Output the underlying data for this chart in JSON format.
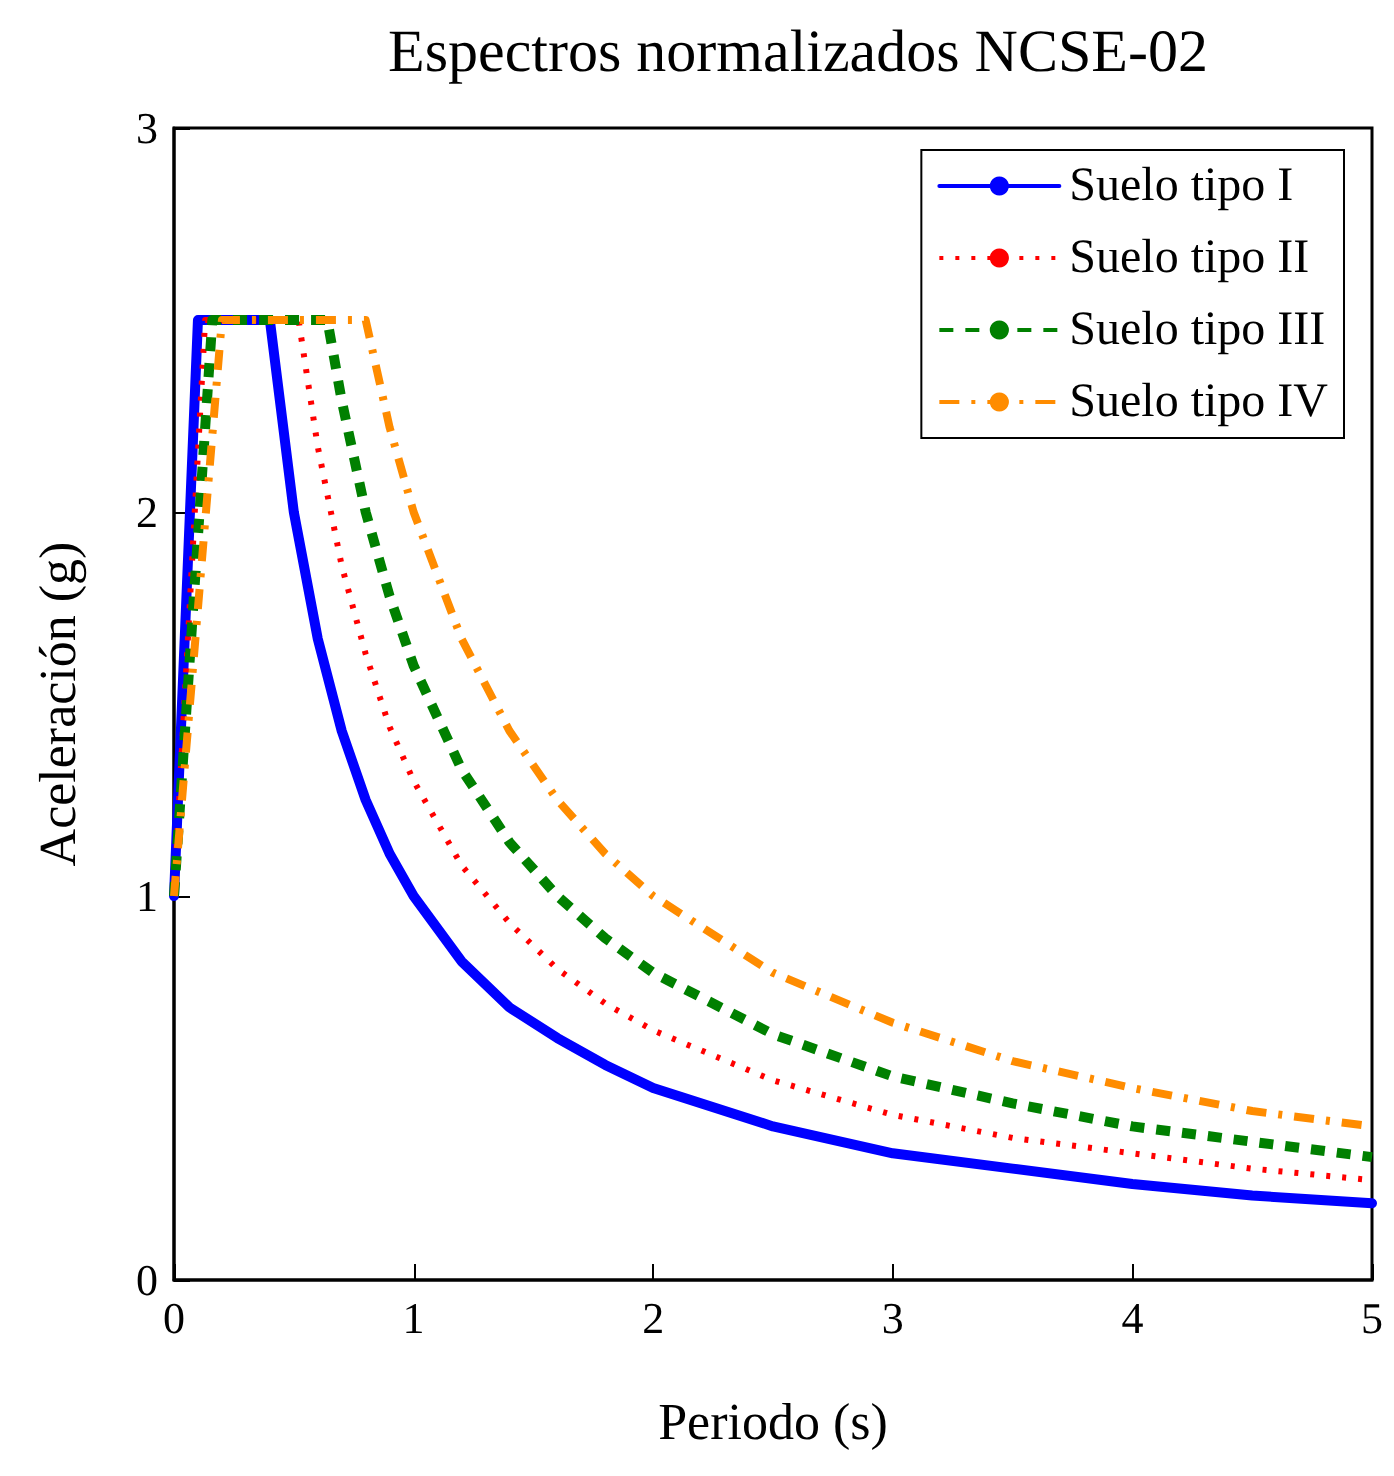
{
  "chart_data": {
    "type": "line",
    "title": "Espectros normalizados NCSE-02",
    "xlabel": "Periodo (s)",
    "ylabel": "Aceleración (g)",
    "xlim": [
      0,
      5
    ],
    "xticks": [
      0,
      1,
      2,
      3,
      4,
      5
    ],
    "ylim": [
      0,
      3
    ],
    "yticks": [
      0,
      1,
      2,
      3
    ],
    "grid": false,
    "legend": "top right",
    "marker": "none",
    "series": [
      {
        "name": "Suelo tipo I",
        "color": "#0000ff",
        "line_style": "solid",
        "x": [
          0,
          0.1,
          0.4,
          0.5,
          0.6,
          0.7,
          0.8,
          0.9,
          1,
          1.2,
          1.4,
          1.6,
          1.8,
          2,
          2.5,
          3,
          3.5,
          4,
          4.5,
          5
        ],
        "values": [
          1,
          2.5,
          2.5,
          2.0,
          1.67,
          1.43,
          1.25,
          1.11,
          1.0,
          0.83,
          0.71,
          0.63,
          0.56,
          0.5,
          0.4,
          0.33,
          0.29,
          0.25,
          0.22,
          0.2
        ]
      },
      {
        "name": "Suelo tipo II",
        "color": "#ff0000",
        "line_style": "dotted",
        "x": [
          0,
          0.13,
          0.52,
          0.6,
          0.7,
          0.8,
          0.9,
          1,
          1.2,
          1.4,
          1.6,
          1.8,
          2,
          2.5,
          3,
          3.5,
          4,
          4.5,
          5
        ],
        "values": [
          1,
          2.5,
          2.5,
          2.17,
          1.86,
          1.63,
          1.44,
          1.3,
          1.08,
          0.93,
          0.81,
          0.72,
          0.65,
          0.52,
          0.43,
          0.37,
          0.33,
          0.29,
          0.26
        ]
      },
      {
        "name": "Suelo tipo III",
        "color": "#008000",
        "line_style": "dashed",
        "x": [
          0,
          0.16,
          0.64,
          0.7,
          0.8,
          0.9,
          1,
          1.2,
          1.4,
          1.6,
          1.8,
          2,
          2.5,
          3,
          3.5,
          4,
          4.5,
          5
        ],
        "values": [
          1,
          2.5,
          2.5,
          2.29,
          2.0,
          1.78,
          1.6,
          1.33,
          1.14,
          1.0,
          0.89,
          0.8,
          0.64,
          0.53,
          0.46,
          0.4,
          0.36,
          0.32
        ]
      },
      {
        "name": "Suelo tipo IV",
        "color": "#ff8c00",
        "line_style": "dashdot",
        "x": [
          0,
          0.2,
          0.8,
          0.9,
          1,
          1.2,
          1.4,
          1.6,
          1.8,
          2,
          2.5,
          3,
          3.5,
          4,
          4.5,
          5
        ],
        "values": [
          1,
          2.5,
          2.5,
          2.22,
          2.0,
          1.67,
          1.43,
          1.25,
          1.11,
          1.0,
          0.8,
          0.67,
          0.57,
          0.5,
          0.44,
          0.4
        ]
      }
    ]
  }
}
